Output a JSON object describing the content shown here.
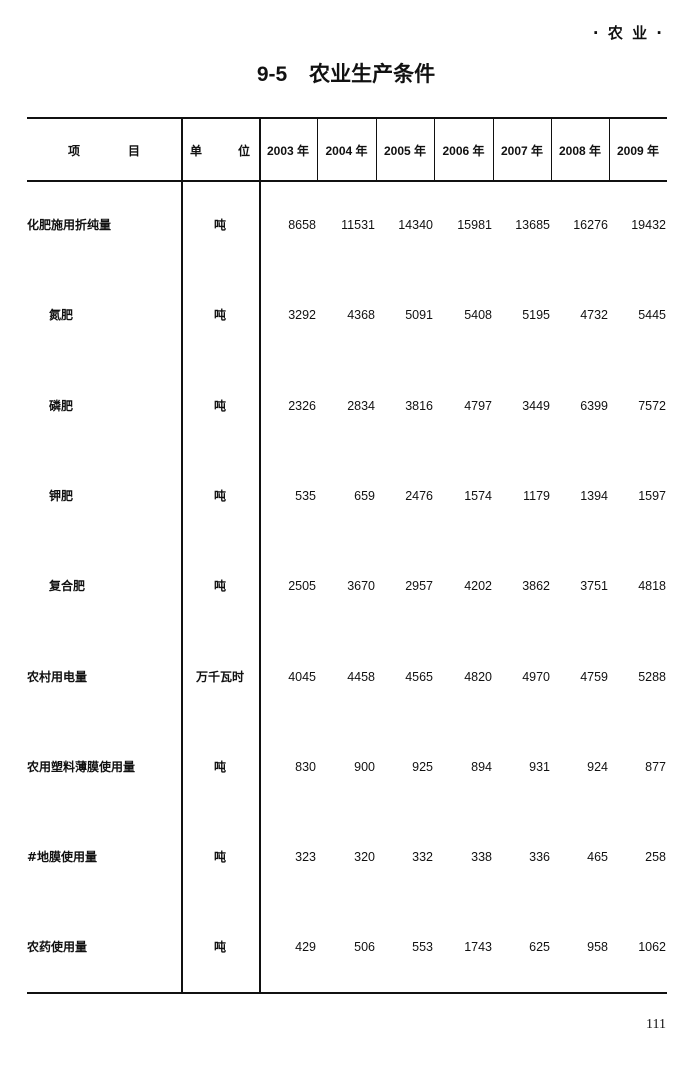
{
  "running_header": "· 农 业 ·",
  "title": {
    "number": "9-5",
    "text": "农业生产条件"
  },
  "table": {
    "headers": {
      "item": "项　　　　目",
      "unit": "单　　　位",
      "years": [
        "2003 年",
        "2004 年",
        "2005 年",
        "2006 年",
        "2007 年",
        "2008 年",
        "2009 年"
      ]
    },
    "rows": [
      {
        "item": "化肥施用折纯量",
        "sub": false,
        "unit": "吨",
        "values": [
          "8658",
          "11531",
          "14340",
          "15981",
          "13685",
          "16276",
          "19432"
        ]
      },
      {
        "item": "氮肥",
        "sub": true,
        "unit": "吨",
        "values": [
          "3292",
          "4368",
          "5091",
          "5408",
          "5195",
          "4732",
          "5445"
        ]
      },
      {
        "item": "磷肥",
        "sub": true,
        "unit": "吨",
        "values": [
          "2326",
          "2834",
          "3816",
          "4797",
          "3449",
          "6399",
          "7572"
        ]
      },
      {
        "item": "钾肥",
        "sub": true,
        "unit": "吨",
        "values": [
          "535",
          "659",
          "2476",
          "1574",
          "1179",
          "1394",
          "1597"
        ]
      },
      {
        "item": "复合肥",
        "sub": true,
        "unit": "吨",
        "values": [
          "2505",
          "3670",
          "2957",
          "4202",
          "3862",
          "3751",
          "4818"
        ]
      },
      {
        "item": "农村用电量",
        "sub": false,
        "unit": "万千瓦时",
        "values": [
          "4045",
          "4458",
          "4565",
          "4820",
          "4970",
          "4759",
          "5288"
        ]
      },
      {
        "item": "农用塑料薄膜使用量",
        "sub": false,
        "unit": "吨",
        "values": [
          "830",
          "900",
          "925",
          "894",
          "931",
          "924",
          "877"
        ]
      },
      {
        "item": "#地膜使用量",
        "sub": false,
        "unit": "吨",
        "values": [
          "323",
          "320",
          "332",
          "338",
          "336",
          "465",
          "258"
        ]
      },
      {
        "item": "农药使用量",
        "sub": false,
        "unit": "吨",
        "values": [
          "429",
          "506",
          "553",
          "1743",
          "625",
          "958",
          "1062"
        ]
      }
    ]
  },
  "page_number": "111"
}
